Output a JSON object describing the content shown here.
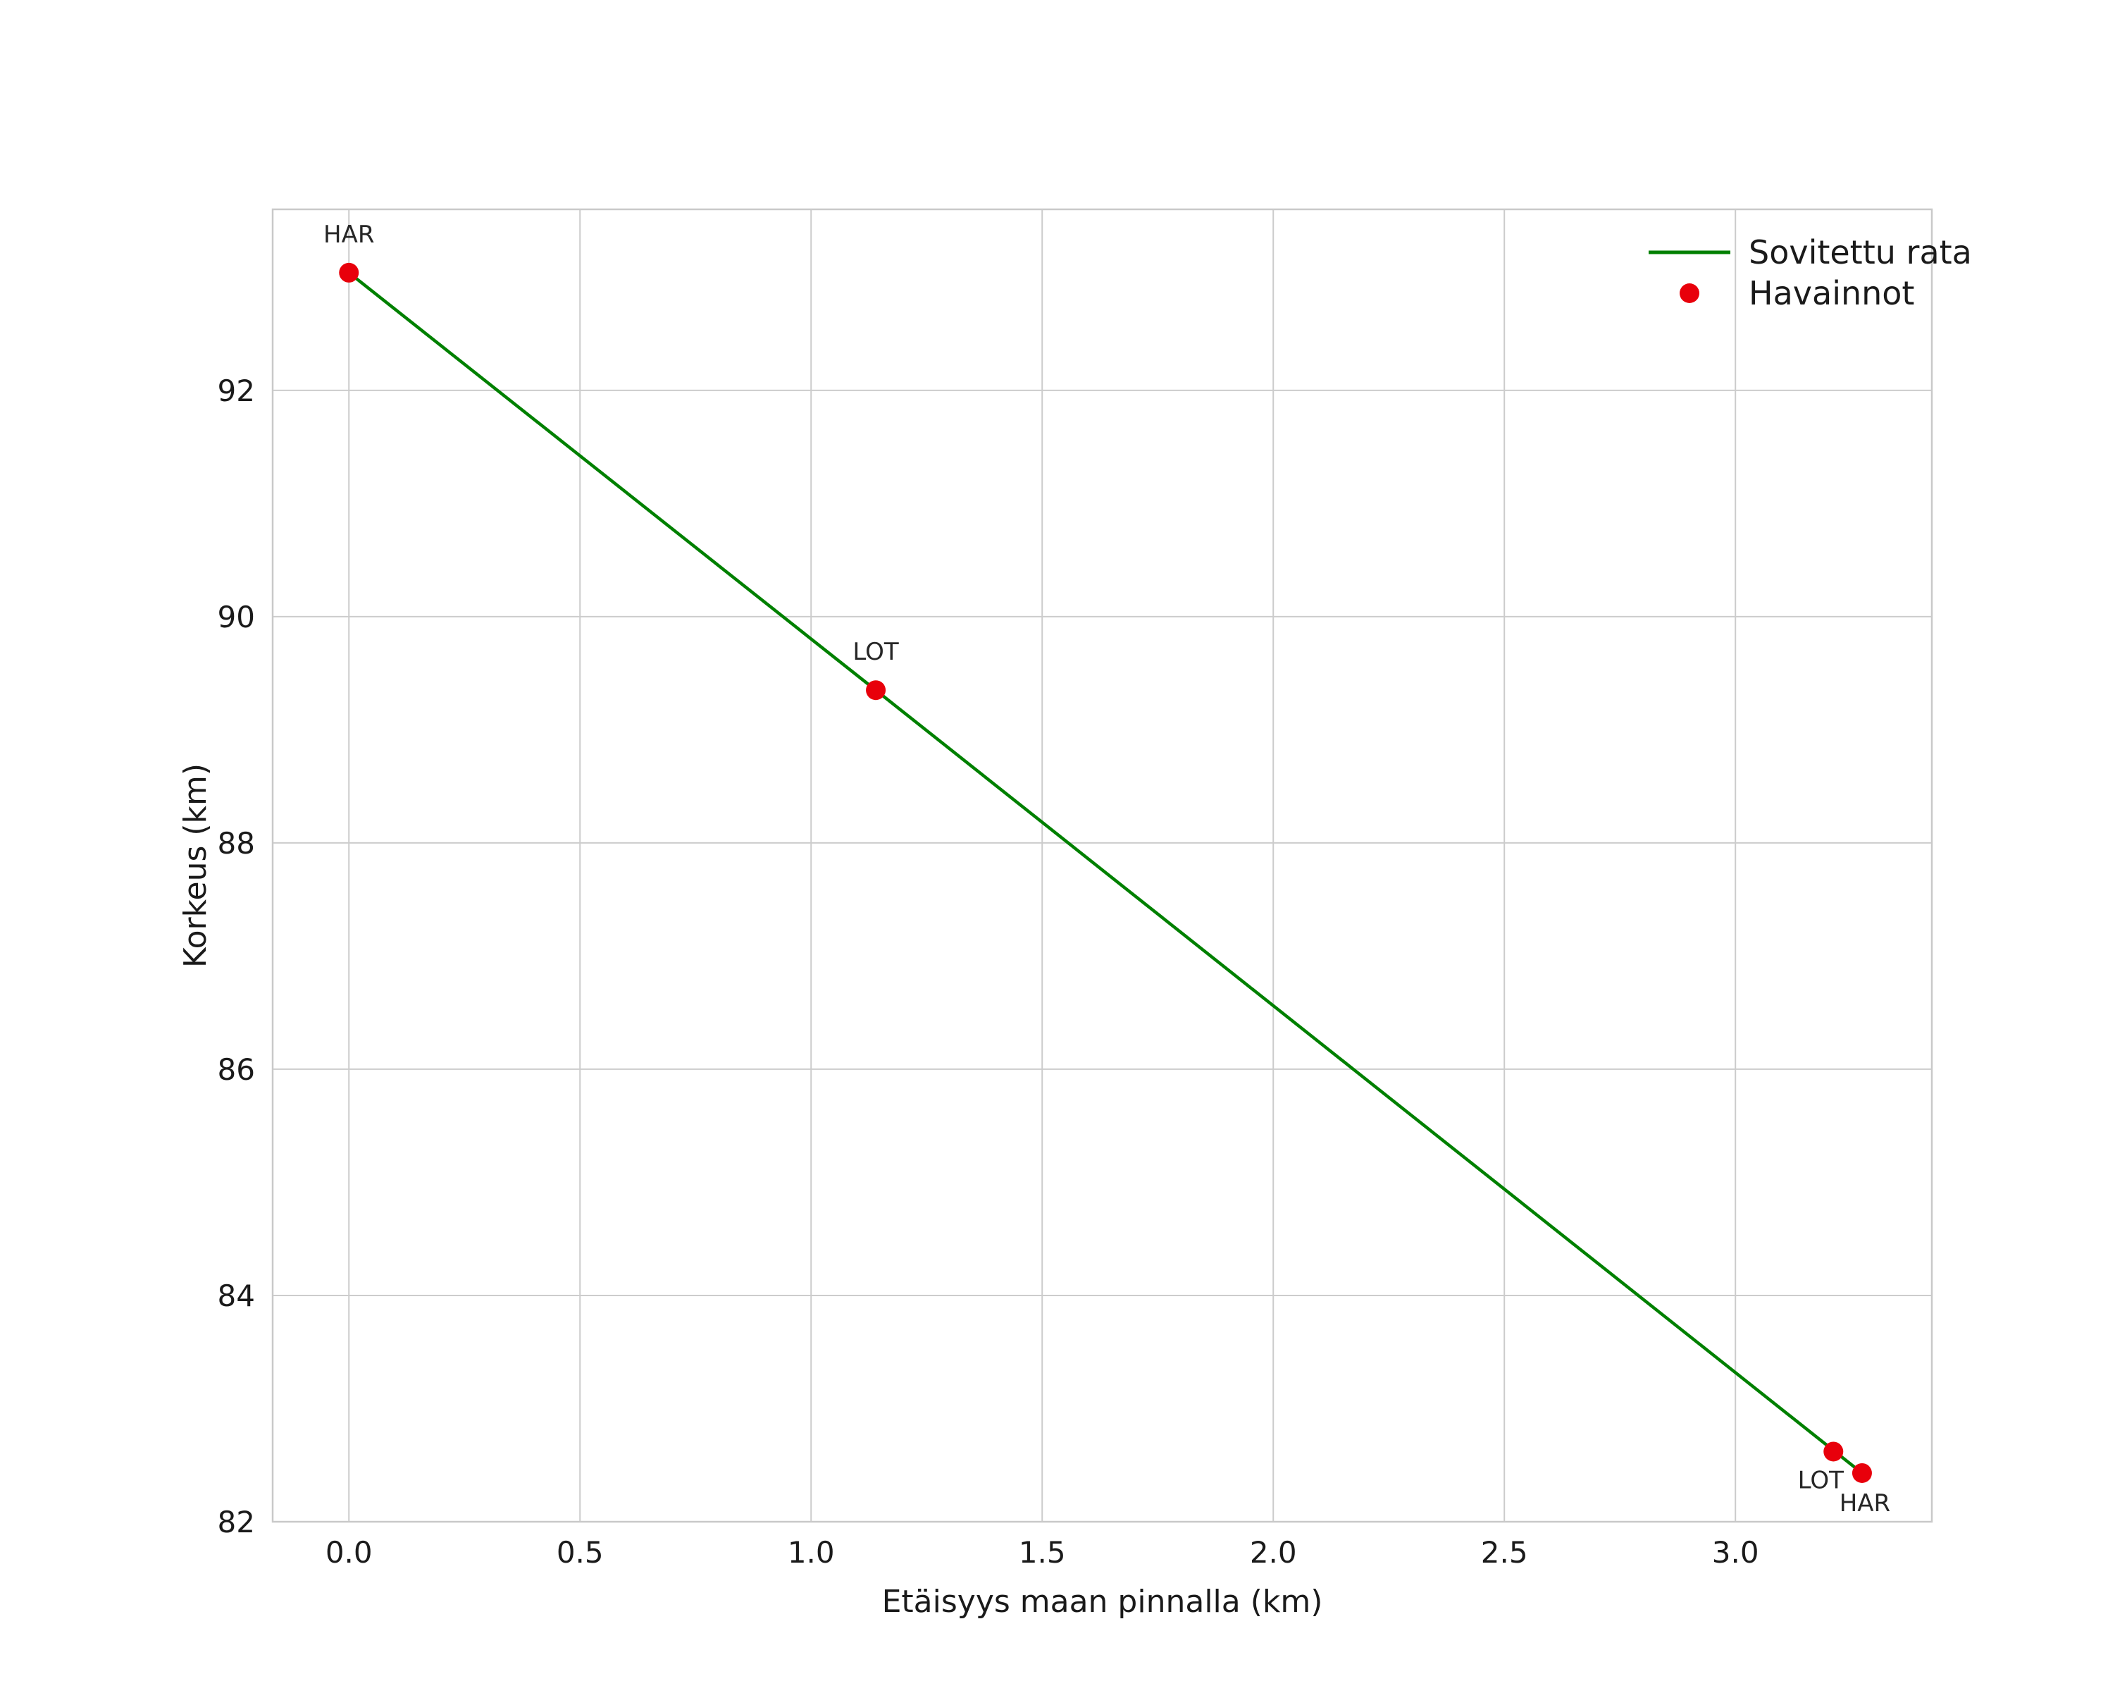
{
  "chart_data": {
    "type": "scatter",
    "title": "",
    "xlabel": "Etäisyys maan pinnalla (km)",
    "ylabel": "Korkeus (km)",
    "xlim": [
      -0.165,
      3.425
    ],
    "ylim": [
      82,
      93.6
    ],
    "x_ticks": {
      "values": [
        0.0,
        0.5,
        1.0,
        1.5,
        2.0,
        2.5,
        3.0
      ],
      "labels": [
        "0.0",
        "0.5",
        "1.0",
        "1.5",
        "2.0",
        "2.5",
        "3.0"
      ]
    },
    "y_ticks": {
      "values": [
        82,
        84,
        86,
        88,
        90,
        92
      ],
      "labels": [
        "82",
        "84",
        "86",
        "88",
        "90",
        "92"
      ]
    },
    "grid": true,
    "background_color": "#ffffff",
    "grid_color": "#cccccc",
    "spine_color": "#c9c9c9",
    "text_color": "#1a1a1a",
    "annotation_color": "#262626",
    "series": [
      {
        "name": "Sovitettu rata",
        "type": "line",
        "color": "#008000",
        "line_width": 4.5,
        "points": [
          [
            0.0,
            93.04
          ],
          [
            1.14,
            89.35
          ],
          [
            3.274,
            82.43
          ]
        ]
      },
      {
        "name": "Havainnot",
        "type": "scatter",
        "color": "#e8000b",
        "marker_radius": 14,
        "points": [
          {
            "x": 0.0,
            "y": 93.04,
            "label": "HAR",
            "label_offset": [
              0,
              -43
            ]
          },
          {
            "x": 1.14,
            "y": 89.35,
            "label": "LOT",
            "label_offset": [
              0,
              -43
            ]
          },
          {
            "x": 3.212,
            "y": 82.62,
            "label": "LOT",
            "label_offset": [
              -18,
              52
            ]
          },
          {
            "x": 3.274,
            "y": 82.43,
            "label": "HAR",
            "label_offset": [
              4,
              54
            ]
          }
        ]
      }
    ],
    "legend": {
      "position": "upper right",
      "entries": [
        {
          "label": "Sovitettu rata",
          "type": "line",
          "color": "#008000"
        },
        {
          "label": "Havainnot",
          "type": "point",
          "color": "#e8000b"
        }
      ]
    }
  }
}
